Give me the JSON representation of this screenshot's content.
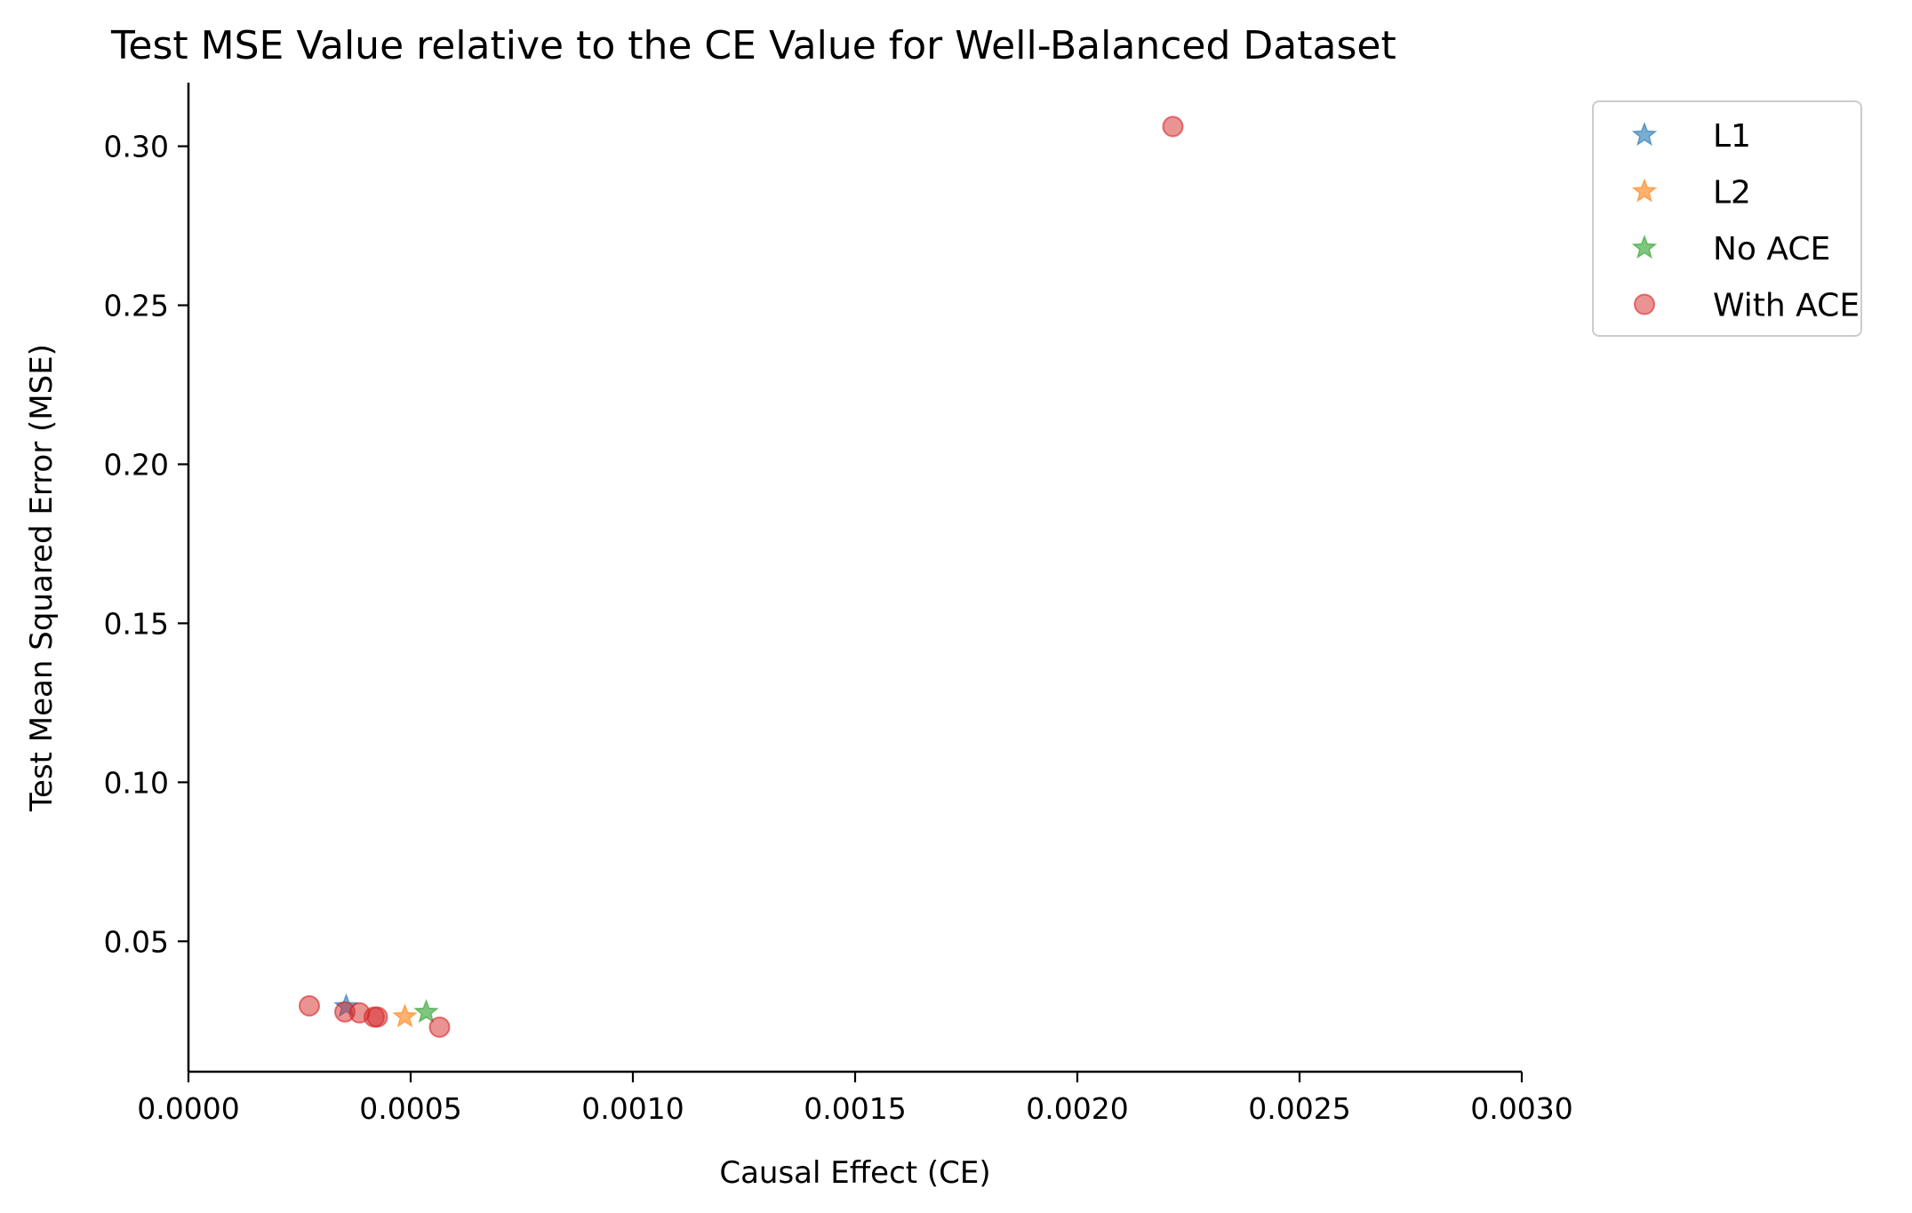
{
  "chart_data": {
    "type": "scatter",
    "title": "Test MSE Value relative to the CE Value for Well-Balanced Dataset",
    "xlabel": "Causal Effect (CE)",
    "ylabel": "Test Mean Squared Error (MSE)",
    "xlim": [
      0.0,
      0.003
    ],
    "ylim": [
      0.009,
      0.32
    ],
    "x_ticks": [
      0.0,
      0.0005,
      0.001,
      0.0015,
      0.002,
      0.0025,
      0.003
    ],
    "x_tick_labels": [
      "0.0000",
      "0.0005",
      "0.0010",
      "0.0015",
      "0.0020",
      "0.0025",
      "0.0030"
    ],
    "y_ticks": [
      0.05,
      0.1,
      0.15,
      0.2,
      0.25,
      0.3
    ],
    "y_tick_labels": [
      "0.05",
      "0.10",
      "0.15",
      "0.20",
      "0.25",
      "0.30"
    ],
    "grid": false,
    "legend_position": "top-right, outside plot",
    "series": [
      {
        "name": "L1",
        "marker": "star",
        "color": "#1f77b4",
        "points": [
          {
            "x": 0.000355,
            "y": 0.0295
          }
        ]
      },
      {
        "name": "L2",
        "marker": "star",
        "color": "#ff7f0e",
        "points": [
          {
            "x": 0.000487,
            "y": 0.0263
          }
        ]
      },
      {
        "name": "No ACE",
        "marker": "star",
        "color": "#2ca02c",
        "points": [
          {
            "x": 0.000535,
            "y": 0.0277
          }
        ]
      },
      {
        "name": "With ACE",
        "marker": "circle",
        "color": "#d62728",
        "points": [
          {
            "x": 0.000272,
            "y": 0.0297
          },
          {
            "x": 0.000352,
            "y": 0.0278
          },
          {
            "x": 0.000385,
            "y": 0.0275
          },
          {
            "x": 0.000418,
            "y": 0.0262
          },
          {
            "x": 0.000425,
            "y": 0.0262
          },
          {
            "x": 0.000565,
            "y": 0.023
          },
          {
            "x": 0.002215,
            "y": 0.3062
          }
        ]
      }
    ]
  }
}
